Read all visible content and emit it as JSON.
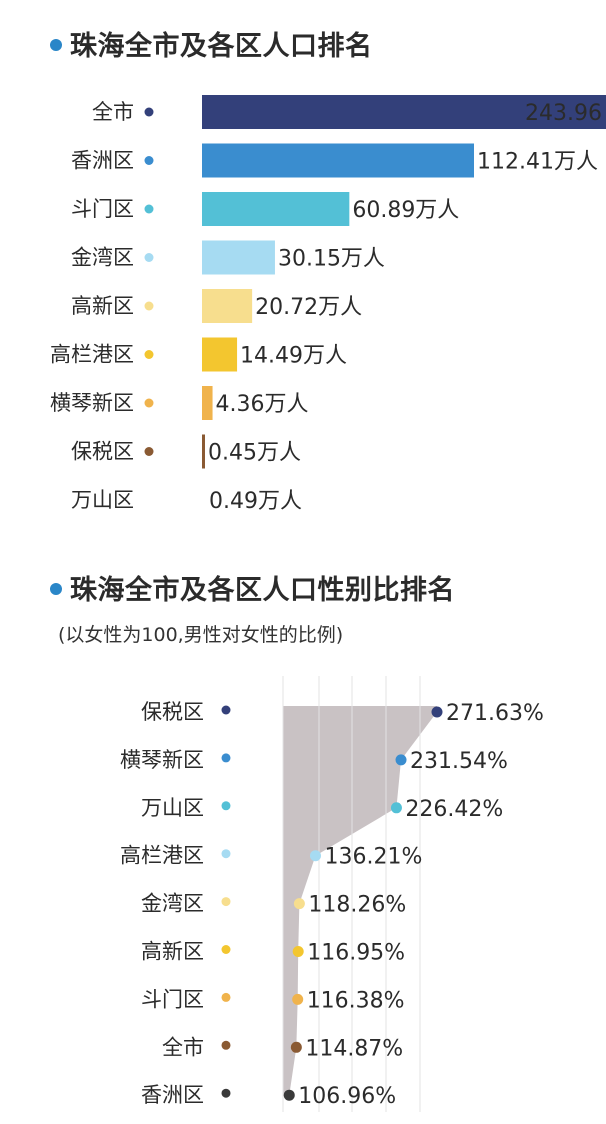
{
  "chart1_title": "珠海全市及各区人口排名",
  "chart2_title": "珠海全市及各区人口性别比排名",
  "chart2_subtitle": "(以女性为100,男性对女性的比例)",
  "chart_data": [
    {
      "type": "bar",
      "title": "珠海全市及各区人口排名",
      "orientation": "horizontal",
      "unit": "万人",
      "categories": [
        "全市",
        "香洲区",
        "斗门区",
        "金湾区",
        "高新区",
        "高栏港区",
        "横琴新区",
        "保税区",
        "万山区"
      ],
      "values": [
        243.96,
        112.41,
        60.89,
        30.15,
        20.72,
        14.49,
        4.36,
        0.45,
        0.49
      ],
      "labels": [
        "243.96",
        "112.41万人",
        "60.89万人",
        "30.15万人",
        "20.72万人",
        "14.49万人",
        "4.36万人",
        "0.45万人",
        "0.49万人"
      ],
      "colors": [
        "#33407a",
        "#3a8dcf",
        "#53c0d6",
        "#a6dbf2",
        "#f7de8e",
        "#f3c62f",
        "#f0b34c",
        "#8a5a33",
        "#ffffff"
      ],
      "dot_colors": [
        "#33407a",
        "#3a8dcf",
        "#53c0d6",
        "#a6dbf2",
        "#f7de8e",
        "#f3c62f",
        "#f0b34c",
        "#8a5a33",
        "#ffffff"
      ]
    },
    {
      "type": "area",
      "title": "珠海全市及各区人口性别比排名",
      "subtitle": "(以女性为100,男性对女性的比例)",
      "orientation": "horizontal",
      "categories": [
        "保税区",
        "横琴新区",
        "万山区",
        "高栏港区",
        "金湾区",
        "高新区",
        "斗门区",
        "全市",
        "香洲区"
      ],
      "values": [
        271.63,
        231.54,
        226.42,
        136.21,
        118.26,
        116.95,
        116.38,
        114.87,
        106.96
      ],
      "labels": [
        "271.63%",
        "231.54%",
        "226.42%",
        "136.21%",
        "118.26%",
        "116.95%",
        "116.38%",
        "114.87%",
        "106.96%"
      ],
      "dot_colors": [
        "#33407a",
        "#3a8dcf",
        "#53c0d6",
        "#a6dbf2",
        "#f7de8e",
        "#f3c62f",
        "#f0b34c",
        "#8a5a33",
        "#3a3a3a"
      ],
      "area_color": "#c9c2c4",
      "grid": true
    }
  ]
}
